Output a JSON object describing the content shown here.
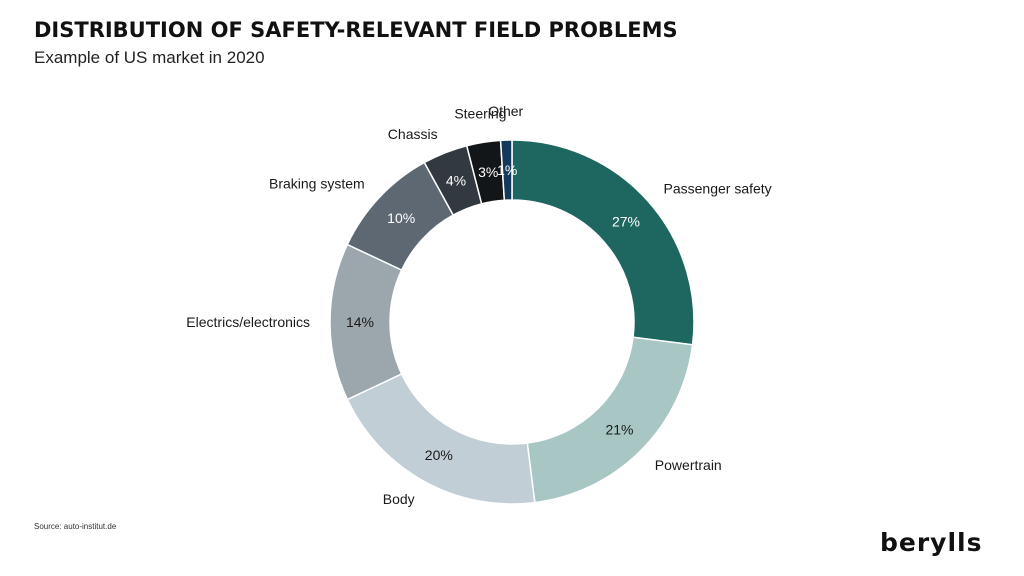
{
  "header": {
    "title": "DISTRIBUTION OF SAFETY-RELEVANT FIELD PROBLEMS",
    "subtitle": "Example of US market in 2020"
  },
  "footer": {
    "source": "Source: auto-institut.de",
    "brand": "berylls"
  },
  "chart_data": {
    "type": "pie",
    "variant": "donut",
    "title": "DISTRIBUTION OF SAFETY-RELEVANT FIELD PROBLEMS",
    "subtitle": "Example of US market in 2020",
    "categories": [
      "Passenger safety",
      "Powertrain",
      "Body",
      "Electrics/electronics",
      "Braking system",
      "Chassis",
      "Steering",
      "Other"
    ],
    "values": [
      27,
      21,
      20,
      14,
      10,
      4,
      3,
      1
    ],
    "value_labels": [
      "27%",
      "21%",
      "20%",
      "14%",
      "10%",
      "4%",
      "3%",
      "1%"
    ],
    "unit": "%",
    "colors": [
      "#1e6660",
      "#a8c6c4",
      "#c2ced5",
      "#9ba6ad",
      "#5e6873",
      "#323941",
      "#121619",
      "#133a5b"
    ],
    "value_label_colors": [
      "#ffffff",
      "#1a1a1a",
      "#1a1a1a",
      "#1a1a1a",
      "#ffffff",
      "#ffffff",
      "#ffffff",
      "#ffffff"
    ],
    "start_angle_deg": 0,
    "direction": "clockwise",
    "legend": "none (labels beside slices)"
  }
}
